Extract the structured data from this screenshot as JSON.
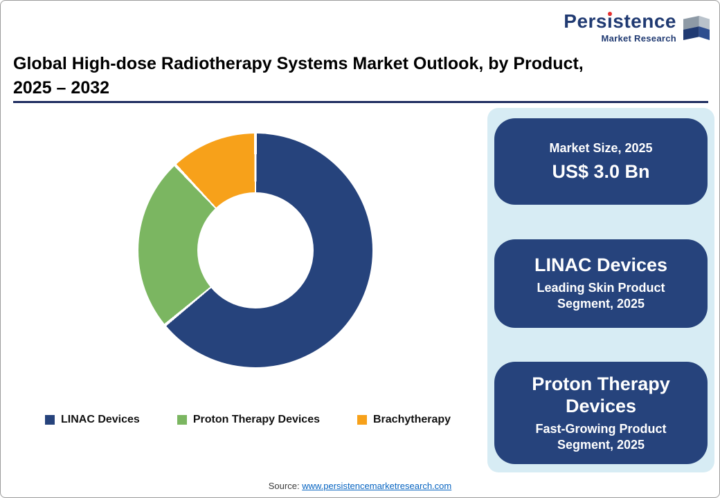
{
  "logo": {
    "brand": "Persistence",
    "tagline": "Market Research",
    "brand_color": "#203A72",
    "accent_color": "#E8302E"
  },
  "header": {
    "title": "Global High-dose Radiotherapy Systems Market Outlook, by Product,\n2025 – 2032",
    "rule_color": "#1B2A5E"
  },
  "chart_data": {
    "type": "pie",
    "subtype": "donut",
    "title": "Global High-dose Radiotherapy Systems Market Outlook, by Product, 2025 – 2032",
    "categories": [
      "LINAC Devices",
      "Proton Therapy Devices",
      "Brachytherapy"
    ],
    "values": [
      64,
      24,
      12
    ],
    "colors": [
      "#26437C",
      "#7BB661",
      "#F7A11A"
    ],
    "start_angle_deg": 0,
    "direction": "clockwise",
    "inner_radius_ratio": 0.5,
    "legend_position": "bottom",
    "separator_color": "#FFFFFF"
  },
  "legend": {
    "items": [
      {
        "label": "LINAC Devices",
        "color": "#26437C"
      },
      {
        "label": "Proton Therapy Devices",
        "color": "#7BB661"
      },
      {
        "label": "Brachytherapy",
        "color": "#F7A11A"
      }
    ]
  },
  "highlights": {
    "panel_bg": "#D7ECF4",
    "card_bg": "#26437C",
    "cards": [
      {
        "title": "Market Size, 2025",
        "value": "US$ 3.0 Bn"
      },
      {
        "title": "LINAC Devices",
        "subtitle": "Leading Skin Product Segment, 2025"
      },
      {
        "title": "Proton Therapy Devices",
        "subtitle": "Fast-Growing Product Segment, 2025"
      }
    ]
  },
  "footer": {
    "source_label": "Source:",
    "source_link_text": "www.persistencemarketresearch.com"
  }
}
